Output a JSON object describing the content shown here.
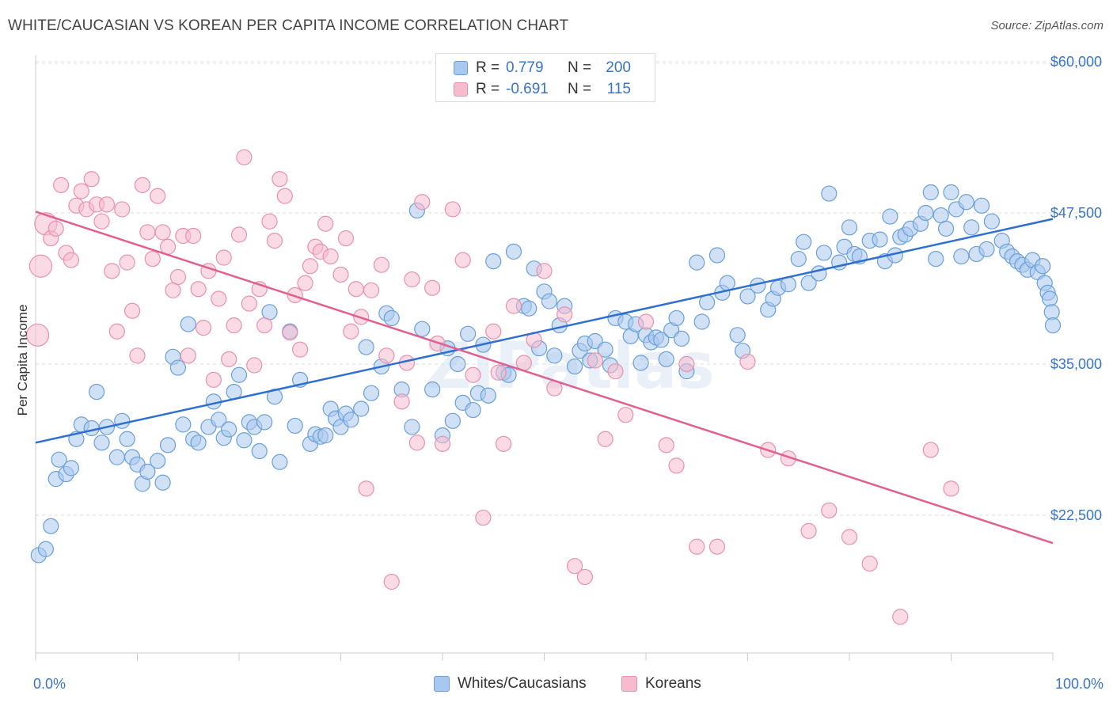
{
  "title": "WHITE/CAUCASIAN VS KOREAN PER CAPITA INCOME CORRELATION CHART",
  "source": "Source: ZipAtlas.com",
  "watermark": "ZIPatlas",
  "colors": {
    "blue_fill": "#a9c8ef",
    "blue_stroke": "#6a9fd8",
    "blue_line": "#2f6fcf",
    "pink_fill": "#f6bccd",
    "pink_stroke": "#e891ae",
    "pink_line": "#e0608f",
    "axis_text": "#3a75c4"
  },
  "legend": {
    "rows": [
      {
        "r_label": "R =",
        "r_value": "0.779",
        "n_label": "N =",
        "n_value": "200"
      },
      {
        "r_label": "R =",
        "r_value": "-0.691",
        "n_label": "N =",
        "n_value": "115"
      }
    ]
  },
  "bottom_legend": [
    "Whites/Caucasians",
    "Koreans"
  ],
  "chart_data": {
    "type": "scatter",
    "ylabel": "Per Capita Income",
    "x_tick_labels": [
      "0.0%",
      "100.0%"
    ],
    "y_tick_labels": [
      "$22,500",
      "$35,000",
      "$47,500",
      "$60,000"
    ],
    "y_ticks": [
      22500,
      35000,
      47500,
      60000
    ],
    "xlim": [
      0,
      100
    ],
    "ylim": [
      11000,
      61000
    ],
    "grid": true,
    "series": [
      {
        "name": "Whites/Caucasians",
        "r": 0.779,
        "n": 200,
        "trend": [
          [
            0,
            28500
          ],
          [
            100,
            47000
          ]
        ],
        "points": [
          [
            0.3,
            19200
          ],
          [
            1,
            19700
          ],
          [
            1.5,
            21600
          ],
          [
            2,
            25500
          ],
          [
            2.3,
            27100
          ],
          [
            3,
            25900
          ],
          [
            3.5,
            26400
          ],
          [
            4,
            28800
          ],
          [
            4.5,
            30000
          ],
          [
            5.5,
            29700
          ],
          [
            6,
            32700
          ],
          [
            6.5,
            28500
          ],
          [
            7,
            29800
          ],
          [
            8,
            27300
          ],
          [
            8.5,
            30300
          ],
          [
            9,
            28800
          ],
          [
            9.5,
            27300
          ],
          [
            10,
            26700
          ],
          [
            10.5,
            25100
          ],
          [
            11,
            26100
          ],
          [
            12,
            27000
          ],
          [
            12.5,
            25200
          ],
          [
            13,
            28300
          ],
          [
            13.5,
            35600
          ],
          [
            14,
            34700
          ],
          [
            14.5,
            30000
          ],
          [
            15,
            38300
          ],
          [
            15.5,
            28800
          ],
          [
            16,
            28500
          ],
          [
            17,
            29800
          ],
          [
            17.5,
            31900
          ],
          [
            18,
            30400
          ],
          [
            18.5,
            28900
          ],
          [
            19,
            29600
          ],
          [
            19.5,
            32700
          ],
          [
            20,
            34100
          ],
          [
            20.5,
            28700
          ],
          [
            21,
            30200
          ],
          [
            21.5,
            29800
          ],
          [
            22,
            27800
          ],
          [
            22.5,
            30200
          ],
          [
            23,
            39300
          ],
          [
            23.5,
            32300
          ],
          [
            24,
            26900
          ],
          [
            25,
            37700
          ],
          [
            25.5,
            29900
          ],
          [
            26,
            33700
          ],
          [
            27,
            28400
          ],
          [
            27.5,
            29200
          ],
          [
            28,
            29000
          ],
          [
            28.5,
            29100
          ],
          [
            29,
            31300
          ],
          [
            29.5,
            30500
          ],
          [
            30,
            29800
          ],
          [
            30.5,
            30900
          ],
          [
            31,
            30400
          ],
          [
            32,
            31300
          ],
          [
            32.5,
            36400
          ],
          [
            33,
            32600
          ],
          [
            34,
            34800
          ],
          [
            34.5,
            39200
          ],
          [
            35,
            38800
          ],
          [
            36,
            32900
          ],
          [
            37,
            29800
          ],
          [
            37.5,
            47700
          ],
          [
            38,
            37900
          ],
          [
            39,
            32900
          ],
          [
            40,
            29100
          ],
          [
            40.5,
            36300
          ],
          [
            41,
            30300
          ],
          [
            41.5,
            35000
          ],
          [
            42,
            31800
          ],
          [
            42.5,
            37500
          ],
          [
            43,
            31200
          ],
          [
            43.5,
            32600
          ],
          [
            44,
            36600
          ],
          [
            44.5,
            32400
          ],
          [
            45,
            43500
          ],
          [
            46,
            34300
          ],
          [
            46.5,
            34100
          ],
          [
            47,
            44300
          ],
          [
            48,
            39800
          ],
          [
            48.5,
            39600
          ],
          [
            49,
            42900
          ],
          [
            49.5,
            36300
          ],
          [
            50,
            41000
          ],
          [
            50.5,
            40200
          ],
          [
            51,
            35700
          ],
          [
            51.5,
            38200
          ],
          [
            52,
            39800
          ],
          [
            53,
            34800
          ],
          [
            53.5,
            36100
          ],
          [
            54,
            36700
          ],
          [
            54.5,
            35300
          ],
          [
            55,
            36900
          ],
          [
            56,
            36200
          ],
          [
            56.5,
            34900
          ],
          [
            57,
            38800
          ],
          [
            58,
            38500
          ],
          [
            58.5,
            37300
          ],
          [
            59,
            38300
          ],
          [
            59.5,
            35100
          ],
          [
            60,
            37400
          ],
          [
            60.5,
            36800
          ],
          [
            61,
            37200
          ],
          [
            61.5,
            37000
          ],
          [
            62,
            35400
          ],
          [
            62.5,
            37800
          ],
          [
            63,
            38800
          ],
          [
            63.5,
            37100
          ],
          [
            64,
            34400
          ],
          [
            65,
            43400
          ],
          [
            65.5,
            38500
          ],
          [
            66,
            40100
          ],
          [
            67,
            44000
          ],
          [
            67.5,
            40900
          ],
          [
            68,
            41700
          ],
          [
            69,
            37400
          ],
          [
            69.5,
            36100
          ],
          [
            70,
            40600
          ],
          [
            71,
            41500
          ],
          [
            72,
            39500
          ],
          [
            72.5,
            40400
          ],
          [
            73,
            41300
          ],
          [
            74,
            41600
          ],
          [
            75,
            43700
          ],
          [
            75.5,
            45100
          ],
          [
            76,
            41700
          ],
          [
            77,
            42500
          ],
          [
            77.5,
            44200
          ],
          [
            78,
            49100
          ],
          [
            79,
            43400
          ],
          [
            79.5,
            44700
          ],
          [
            80,
            46300
          ],
          [
            80.5,
            44100
          ],
          [
            81,
            43900
          ],
          [
            82,
            45200
          ],
          [
            83,
            45300
          ],
          [
            83.5,
            43500
          ],
          [
            84,
            47200
          ],
          [
            84.5,
            44000
          ],
          [
            85,
            45500
          ],
          [
            85.5,
            45700
          ],
          [
            86,
            46200
          ],
          [
            87,
            46600
          ],
          [
            87.5,
            47500
          ],
          [
            88,
            49200
          ],
          [
            88.5,
            43700
          ],
          [
            89,
            47300
          ],
          [
            89.5,
            46200
          ],
          [
            90,
            49200
          ],
          [
            90.5,
            47800
          ],
          [
            91,
            43900
          ],
          [
            91.5,
            48400
          ],
          [
            92,
            46300
          ],
          [
            92.5,
            44100
          ],
          [
            93,
            48100
          ],
          [
            93.5,
            44500
          ],
          [
            94,
            46800
          ],
          [
            95,
            45200
          ],
          [
            95.5,
            44300
          ],
          [
            96,
            43900
          ],
          [
            96.5,
            43500
          ],
          [
            97,
            43200
          ],
          [
            97.5,
            42800
          ],
          [
            98,
            43600
          ],
          [
            98.5,
            42600
          ],
          [
            99,
            43100
          ],
          [
            99.2,
            41700
          ],
          [
            99.5,
            40900
          ],
          [
            99.7,
            40400
          ],
          [
            99.9,
            39300
          ],
          [
            100,
            38200
          ]
        ]
      },
      {
        "name": "Koreans",
        "r": -0.691,
        "n": 115,
        "trend": [
          [
            0,
            47600
          ],
          [
            100,
            20200
          ]
        ],
        "points": [
          [
            0.2,
            37400
          ],
          [
            0.5,
            43100
          ],
          [
            1,
            46600
          ],
          [
            1.5,
            45400
          ],
          [
            2,
            46200
          ],
          [
            2.5,
            49800
          ],
          [
            3,
            44200
          ],
          [
            3.5,
            43600
          ],
          [
            4,
            48100
          ],
          [
            4.5,
            49300
          ],
          [
            5,
            47800
          ],
          [
            5.5,
            50300
          ],
          [
            6,
            48200
          ],
          [
            6.5,
            46800
          ],
          [
            7,
            48200
          ],
          [
            7.5,
            42700
          ],
          [
            8,
            37700
          ],
          [
            8.5,
            47800
          ],
          [
            9,
            43400
          ],
          [
            9.5,
            39400
          ],
          [
            10,
            35700
          ],
          [
            10.5,
            49800
          ],
          [
            11,
            45900
          ],
          [
            11.5,
            43700
          ],
          [
            12,
            48900
          ],
          [
            12.5,
            45900
          ],
          [
            13,
            44700
          ],
          [
            13.5,
            41100
          ],
          [
            14,
            42200
          ],
          [
            14.5,
            45600
          ],
          [
            15,
            35700
          ],
          [
            15.5,
            45600
          ],
          [
            16,
            41200
          ],
          [
            16.5,
            38000
          ],
          [
            17,
            42700
          ],
          [
            17.5,
            33700
          ],
          [
            18,
            40400
          ],
          [
            18.5,
            43800
          ],
          [
            19,
            35400
          ],
          [
            19.5,
            38200
          ],
          [
            20,
            45700
          ],
          [
            20.5,
            52100
          ],
          [
            21,
            40000
          ],
          [
            21.5,
            34900
          ],
          [
            22,
            41200
          ],
          [
            22.5,
            38200
          ],
          [
            23,
            46800
          ],
          [
            23.5,
            45200
          ],
          [
            24,
            50300
          ],
          [
            24.5,
            48900
          ],
          [
            25,
            37600
          ],
          [
            25.5,
            40700
          ],
          [
            26,
            36200
          ],
          [
            26.5,
            41700
          ],
          [
            27,
            43100
          ],
          [
            27.5,
            44700
          ],
          [
            28,
            44300
          ],
          [
            28.5,
            46600
          ],
          [
            29,
            43900
          ],
          [
            30,
            42400
          ],
          [
            30.5,
            45400
          ],
          [
            31,
            37700
          ],
          [
            31.5,
            41200
          ],
          [
            32,
            38900
          ],
          [
            32.5,
            24700
          ],
          [
            33,
            41100
          ],
          [
            34,
            43200
          ],
          [
            34.5,
            35700
          ],
          [
            35,
            17000
          ],
          [
            36,
            31900
          ],
          [
            36.5,
            35100
          ],
          [
            37,
            42000
          ],
          [
            37.5,
            28500
          ],
          [
            38,
            48400
          ],
          [
            39,
            41300
          ],
          [
            39.5,
            36700
          ],
          [
            40,
            28400
          ],
          [
            41,
            47800
          ],
          [
            42,
            43600
          ],
          [
            43,
            34100
          ],
          [
            44,
            22300
          ],
          [
            45,
            37700
          ],
          [
            45.5,
            34300
          ],
          [
            46,
            28400
          ],
          [
            47,
            39800
          ],
          [
            48,
            35100
          ],
          [
            49,
            37000
          ],
          [
            50,
            42700
          ],
          [
            51,
            33000
          ],
          [
            52,
            39100
          ],
          [
            53,
            18300
          ],
          [
            54,
            17400
          ],
          [
            55,
            35300
          ],
          [
            56,
            28800
          ],
          [
            57,
            34400
          ],
          [
            58,
            30800
          ],
          [
            60,
            38500
          ],
          [
            62,
            28300
          ],
          [
            63,
            26600
          ],
          [
            64,
            35000
          ],
          [
            65,
            19900
          ],
          [
            67,
            19900
          ],
          [
            70,
            35200
          ],
          [
            72,
            27900
          ],
          [
            74,
            27200
          ],
          [
            76,
            21200
          ],
          [
            78,
            22900
          ],
          [
            80,
            20700
          ],
          [
            82,
            18500
          ],
          [
            85,
            14100
          ],
          [
            88,
            27900
          ],
          [
            90,
            24700
          ]
        ]
      }
    ]
  }
}
